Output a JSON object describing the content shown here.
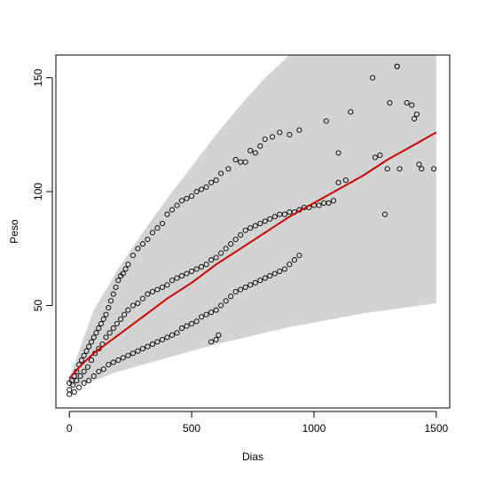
{
  "chart_data": {
    "type": "scatter",
    "title": "",
    "xlabel": "Dias",
    "ylabel": "Peso",
    "xlim": [
      -55,
      1555
    ],
    "ylim": [
      5,
      160
    ],
    "x_ticks": [
      0,
      500,
      1000,
      1500
    ],
    "y_ticks": [
      50,
      100,
      150
    ],
    "x_tick_labels": [
      "0",
      "500",
      "1000",
      "1500"
    ],
    "y_tick_labels": [
      "50",
      "100",
      "150"
    ],
    "grid": false,
    "colors": {
      "band": "#d3d3d3",
      "fit_line": "#cc0000",
      "points": "#000000",
      "frame": "#000000"
    },
    "band": {
      "x": [
        0,
        100,
        200,
        300,
        400,
        500,
        600,
        700,
        800,
        900,
        1000,
        1100,
        1200,
        1300,
        1400,
        1500
      ],
      "lower": [
        14,
        17,
        21,
        24,
        27,
        30,
        33,
        35.5,
        38,
        40.5,
        42.5,
        44.5,
        46.5,
        48,
        49.5,
        51
      ],
      "upper": [
        18,
        48,
        66,
        82,
        97,
        111,
        125,
        138,
        150,
        160,
        160,
        160,
        160,
        160,
        160,
        160
      ]
    },
    "fit_line": {
      "x": [
        0,
        50,
        100,
        150,
        200,
        300,
        400,
        500,
        600,
        700,
        800,
        900,
        1000,
        1100,
        1200,
        1300,
        1400,
        1500
      ],
      "y": [
        18,
        24,
        29,
        33,
        37,
        45,
        53,
        60,
        68,
        75,
        82,
        89,
        95,
        101,
        107,
        114,
        120,
        126
      ]
    },
    "series": [
      {
        "x": [
          0,
          10,
          20,
          30,
          40,
          50,
          60,
          70,
          80,
          90,
          100,
          110,
          120,
          130,
          140,
          150,
          160,
          170,
          180,
          190,
          200,
          210,
          220,
          230,
          240,
          260,
          280,
          300,
          320,
          340,
          360,
          380,
          400,
          420,
          440,
          460,
          480,
          500,
          520,
          540,
          560,
          580,
          600,
          620,
          650,
          680,
          700,
          720,
          740,
          760,
          780,
          800,
          830,
          860,
          900,
          940
        ],
        "y": [
          16,
          17,
          19,
          21,
          24,
          26,
          28,
          30,
          32,
          34,
          36,
          38,
          40,
          42,
          44,
          46,
          49,
          52,
          55,
          58,
          61,
          63,
          64,
          66,
          68,
          72,
          75,
          77,
          79,
          82,
          84,
          86,
          90,
          92,
          94,
          96,
          97,
          98,
          100,
          101,
          102,
          104,
          105,
          108,
          110,
          114,
          113,
          113,
          118,
          117,
          120,
          123,
          124,
          126,
          125,
          127
        ]
      },
      {
        "x": [
          0,
          15,
          30,
          45,
          60,
          75,
          90,
          105,
          120,
          135,
          150,
          165,
          180,
          195,
          210,
          225,
          240,
          260,
          280,
          300,
          320,
          340,
          360,
          380,
          400,
          420,
          440,
          460,
          480,
          500,
          520,
          540,
          560,
          580,
          600,
          620,
          640,
          660,
          680,
          700,
          720,
          740,
          760,
          780,
          800,
          820,
          840,
          860,
          880,
          900,
          920,
          940,
          960,
          980,
          1000,
          1020,
          1040,
          1060,
          1080,
          1100,
          1130
        ],
        "y": [
          13,
          15,
          17,
          19,
          21,
          23,
          26,
          29,
          31,
          33,
          36,
          38,
          40,
          42,
          44,
          46,
          48,
          50,
          51,
          53,
          55,
          56,
          57,
          58,
          59,
          61,
          62,
          63,
          64,
          65,
          66,
          67,
          68,
          70,
          71,
          73,
          75,
          77,
          79,
          81,
          83,
          84,
          85,
          86,
          87,
          88,
          89,
          90,
          90,
          91,
          91,
          92,
          93,
          93,
          94,
          94,
          95,
          95,
          96,
          104,
          105
        ]
      },
      {
        "x": [
          0,
          20,
          40,
          60,
          80,
          100,
          120,
          140,
          160,
          180,
          200,
          220,
          240,
          260,
          280,
          300,
          320,
          340,
          360,
          380,
          400,
          420,
          440,
          460,
          480,
          500,
          520,
          540,
          560,
          580,
          600,
          620,
          640,
          660,
          680,
          700,
          720,
          740,
          760,
          780,
          800,
          820,
          840,
          860,
          880,
          900,
          920,
          940
        ],
        "y": [
          11,
          12,
          14,
          16,
          17,
          19,
          21,
          22,
          24,
          25,
          26,
          27,
          28,
          29,
          30,
          31,
          32,
          33,
          34,
          35,
          36,
          37,
          38,
          40,
          41,
          42,
          43,
          45,
          46,
          47,
          48,
          50,
          52,
          54,
          56,
          57,
          58,
          59,
          60,
          61,
          62,
          63,
          64,
          65,
          66,
          68,
          70,
          72
        ]
      },
      {
        "x": [
          580,
          600,
          610
        ],
        "y": [
          34,
          35,
          37
        ]
      },
      {
        "x": [
          1050,
          1100,
          1150,
          1250,
          1270,
          1290,
          1300,
          1310,
          1340,
          1350,
          1380,
          1400,
          1410,
          1420,
          1430,
          1440,
          1490
        ],
        "y": [
          131,
          117,
          135,
          115,
          116,
          90,
          110,
          139,
          155,
          110,
          139,
          138,
          132,
          134,
          112,
          110,
          110
        ]
      },
      {
        "x": [
          1240,
          1340
        ],
        "y": [
          150,
          155
        ]
      }
    ]
  }
}
